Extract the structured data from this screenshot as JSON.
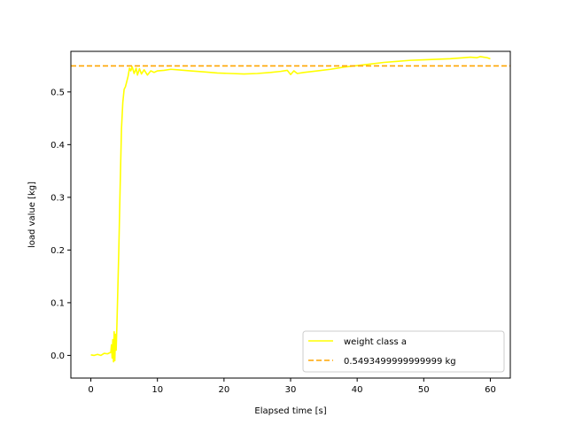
{
  "chart_data": {
    "type": "line",
    "title": "",
    "xlabel": "Elapsed time [s]",
    "ylabel": "load value [kg]",
    "xlim": [
      -3.0,
      63.0
    ],
    "ylim": [
      -0.043,
      0.577
    ],
    "xticks": [
      0,
      10,
      20,
      30,
      40,
      50,
      60
    ],
    "yticks": [
      0.0,
      0.1,
      0.2,
      0.3,
      0.4,
      0.5
    ],
    "xtick_labels": [
      "0",
      "10",
      "20",
      "30",
      "40",
      "50",
      "60"
    ],
    "ytick_labels": [
      "0.0",
      "0.1",
      "0.2",
      "0.3",
      "0.4",
      "0.5"
    ],
    "grid": false,
    "legend_position": "lower-right",
    "series": [
      {
        "name": "weight class a",
        "color": "#ffff00",
        "style": "solid",
        "x": [
          0,
          0.5,
          1,
          1.5,
          2,
          2.5,
          3,
          3.1,
          3.2,
          3.3,
          3.4,
          3.5,
          3.6,
          3.7,
          3.8,
          3.9,
          4,
          4.2,
          4.4,
          4.6,
          4.8,
          5,
          5.2,
          5.4,
          5.6,
          5.8,
          6,
          6.2,
          6.5,
          6.8,
          7,
          7.3,
          7.6,
          8,
          8.5,
          9,
          9.5,
          10,
          11,
          12,
          13,
          14,
          15,
          17,
          19,
          21,
          23,
          25,
          27,
          28.5,
          29.5,
          30,
          30.5,
          31,
          32,
          34,
          36,
          38,
          40,
          42,
          44,
          46,
          48,
          50,
          52,
          54,
          56,
          57,
          58,
          58.5,
          59,
          59.5,
          60
        ],
        "values": [
          0.001,
          0.0,
          0.002,
          0.0,
          0.004,
          0.003,
          0.006,
          0.02,
          -0.005,
          0.03,
          -0.012,
          0.045,
          -0.01,
          0.04,
          0.01,
          0.05,
          0.1,
          0.2,
          0.32,
          0.43,
          0.48,
          0.505,
          0.51,
          0.52,
          0.53,
          0.545,
          0.54,
          0.548,
          0.535,
          0.545,
          0.532,
          0.544,
          0.534,
          0.542,
          0.532,
          0.54,
          0.537,
          0.54,
          0.541,
          0.543,
          0.542,
          0.541,
          0.54,
          0.538,
          0.536,
          0.535,
          0.534,
          0.535,
          0.537,
          0.539,
          0.541,
          0.533,
          0.54,
          0.535,
          0.537,
          0.54,
          0.543,
          0.547,
          0.55,
          0.553,
          0.556,
          0.558,
          0.56,
          0.561,
          0.562,
          0.563,
          0.565,
          0.566,
          0.565,
          0.567,
          0.566,
          0.565,
          0.563
        ]
      },
      {
        "name": "0.5493499999999999 kg",
        "color": "#ffa500",
        "style": "dashed",
        "x": [
          -3.0,
          63.0
        ],
        "values": [
          0.5493499999999999,
          0.5493499999999999
        ]
      }
    ]
  }
}
